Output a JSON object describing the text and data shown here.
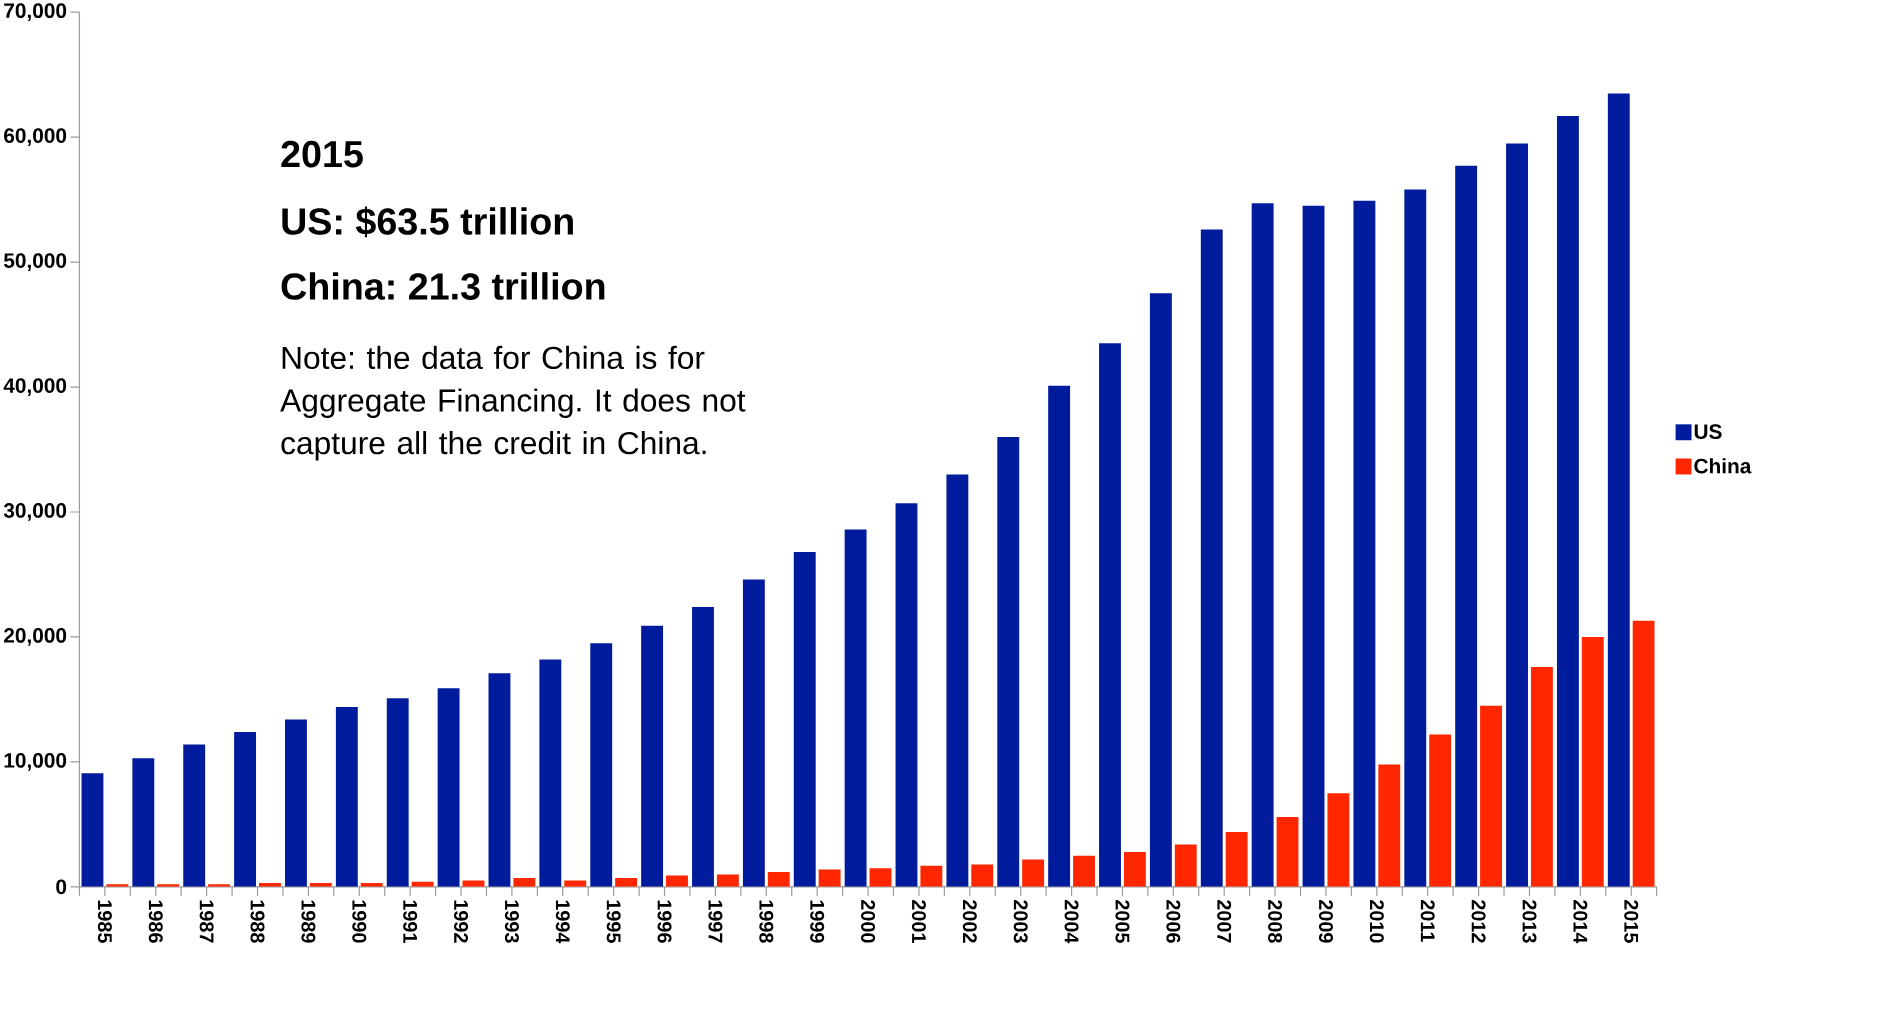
{
  "chart_data": {
    "type": "bar",
    "categories": [
      "1985",
      "1986",
      "1987",
      "1988",
      "1989",
      "1990",
      "1991",
      "1992",
      "1993",
      "1994",
      "1995",
      "1996",
      "1997",
      "1998",
      "1999",
      "2000",
      "2001",
      "2002",
      "2003",
      "2004",
      "2005",
      "2006",
      "2007",
      "2008",
      "2009",
      "2010",
      "2011",
      "2012",
      "2013",
      "2014",
      "2015"
    ],
    "series": [
      {
        "name": "US",
        "color": "#001c9c",
        "values": [
          9100,
          10300,
          11400,
          12400,
          13400,
          14400,
          15100,
          15900,
          17100,
          18200,
          19500,
          20900,
          22400,
          24600,
          26800,
          28600,
          30700,
          33000,
          36000,
          40100,
          43500,
          47500,
          52600,
          54700,
          54500,
          54900,
          55800,
          57700,
          59500,
          61700,
          63500
        ]
      },
      {
        "name": "China",
        "color": "#ff2600",
        "values": [
          200,
          200,
          200,
          300,
          300,
          300,
          400,
          500,
          700,
          500,
          700,
          900,
          1000,
          1200,
          1400,
          1500,
          1700,
          1800,
          2200,
          2500,
          2800,
          3400,
          4400,
          5600,
          7500,
          9800,
          12200,
          14500,
          17600,
          20000,
          21300
        ]
      }
    ],
    "ylim": [
      0,
      70000
    ],
    "yticks": [
      0,
      {
        "value": 10000,
        "label": "10,000"
      },
      {
        "value": 20000,
        "label": "20,000"
      },
      {
        "value": 30000,
        "label": "30,000"
      },
      {
        "value": 40000,
        "label": "40,000"
      },
      {
        "value": 50000,
        "label": "50,000"
      },
      {
        "value": 60000,
        "label": "60,000"
      },
      {
        "value": 70000,
        "label": "70,000"
      }
    ],
    "legend": "right",
    "annotations": [
      "2015",
      "US: $63.5 trillion",
      "China: 21.3 trillion",
      "Note: the data for China is for Aggregate Financing. It does not capture all the credit in China."
    ]
  }
}
